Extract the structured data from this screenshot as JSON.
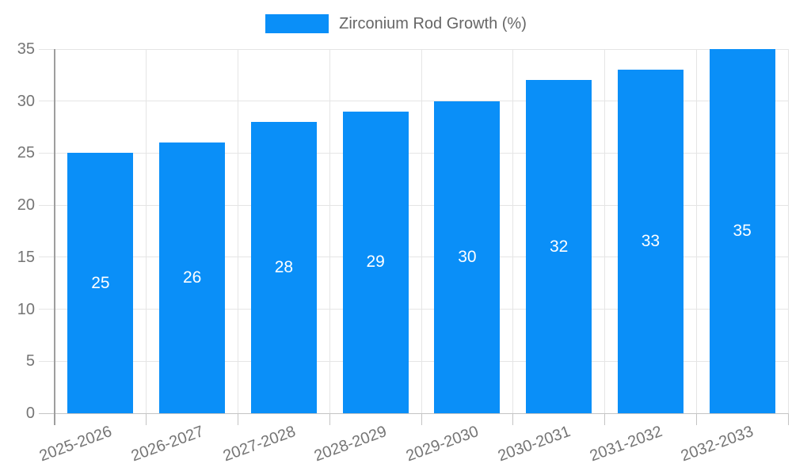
{
  "chart_data": {
    "type": "bar",
    "title": "Zirconium Rod Growth (%)",
    "categories": [
      "2025-2026",
      "2026-2027",
      "2027-2028",
      "2028-2029",
      "2029-2030",
      "2030-2031",
      "2031-2032",
      "2032-2033"
    ],
    "values": [
      25,
      26,
      28,
      29,
      30,
      32,
      33,
      35
    ],
    "xlabel": "",
    "ylabel": "",
    "ylim": [
      0,
      35
    ],
    "yticks": [
      0,
      5,
      10,
      15,
      20,
      25,
      30,
      35
    ],
    "grid": true,
    "legend_position": "top-center",
    "bar_color": "#0a8ff8",
    "value_label_color": "#ffffff",
    "gridline_color": "#e5e5e5",
    "zero_line_color": "#c4c4c4",
    "axis_line_color": "#9e9e9e",
    "tick_text_color": "#757575",
    "legend_text_color": "#666666"
  }
}
